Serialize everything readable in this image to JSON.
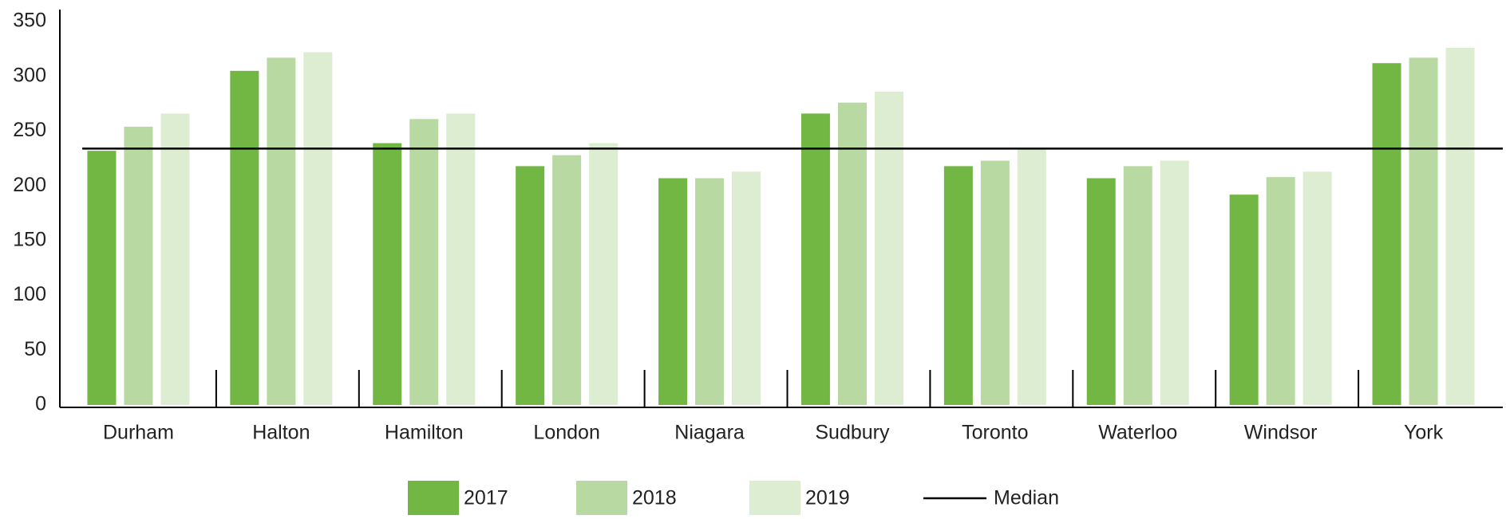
{
  "chart_data": {
    "type": "bar",
    "categories": [
      "Durham",
      "Halton",
      "Hamilton",
      "London",
      "Niagara",
      "Sudbury",
      "Toronto",
      "Waterloo",
      "Windsor",
      "York"
    ],
    "series": [
      {
        "name": "2017",
        "color": "#72b644",
        "values": [
          232,
          305,
          239,
          218,
          207,
          266,
          218,
          207,
          192,
          312
        ]
      },
      {
        "name": "2018",
        "color": "#b8d9a2",
        "values": [
          254,
          317,
          261,
          228,
          207,
          276,
          223,
          218,
          208,
          317
        ]
      },
      {
        "name": "2019",
        "color": "#dcedd2",
        "values": [
          266,
          322,
          266,
          239,
          213,
          286,
          234,
          223,
          213,
          326
        ]
      }
    ],
    "median": {
      "name": "Median",
      "value": 234,
      "color": "#000000"
    },
    "ylim": [
      0,
      350
    ],
    "yticks": [
      0,
      50,
      100,
      150,
      200,
      250,
      300,
      350
    ],
    "grid": false
  }
}
